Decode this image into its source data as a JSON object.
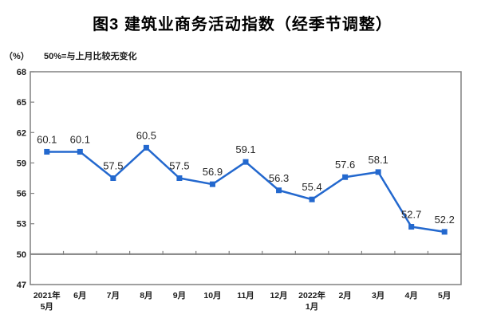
{
  "page": {
    "title": "图3 建筑业商务活动指数（经季节调整）"
  },
  "chart_data": {
    "type": "line",
    "title": "图3 建筑业商务活动指数（经季节调整）",
    "unit_label": "（%）",
    "note": "50%=与上月比较无变化",
    "categories": [
      [
        "2021年",
        "5月"
      ],
      [
        "6月"
      ],
      [
        "7月"
      ],
      [
        "8月"
      ],
      [
        "9月"
      ],
      [
        "10月"
      ],
      [
        "11月"
      ],
      [
        "12月"
      ],
      [
        "2022年",
        "1月"
      ],
      [
        "2月"
      ],
      [
        "3月"
      ],
      [
        "4月"
      ],
      [
        "5月"
      ]
    ],
    "series": [
      {
        "name": "建筑业商务活动指数",
        "values": [
          60.1,
          60.1,
          57.5,
          60.5,
          57.5,
          56.9,
          59.1,
          56.3,
          55.4,
          57.6,
          58.1,
          52.7,
          52.2
        ]
      }
    ],
    "ylim": [
      47,
      68
    ],
    "yticks": [
      47,
      50,
      53,
      56,
      59,
      62,
      65,
      68
    ],
    "reference_line": 50,
    "grid": false,
    "legend_position": "none",
    "colors": {
      "line": "#2368CE",
      "marker": "#2368CE",
      "axis_frame": "#808080",
      "reference_line": "#808080",
      "label_text": "#262626"
    }
  }
}
